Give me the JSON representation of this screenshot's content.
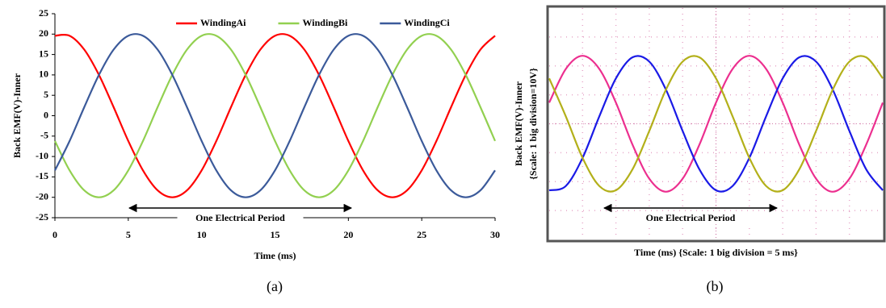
{
  "chart_data": [
    {
      "type": "line",
      "xlabel": "Time (ms)",
      "ylabel": "Back EMF(V)-Inner",
      "caption": "(a)",
      "annotation": "One Electrical Period",
      "x": [
        0,
        1,
        2,
        3,
        4,
        5,
        6,
        7,
        8,
        9,
        10,
        11,
        12,
        13,
        14,
        15,
        16,
        17,
        18,
        19,
        20,
        21,
        22,
        23,
        24,
        25,
        26,
        27,
        28,
        29,
        30
      ],
      "series": [
        {
          "name": "WindingAi",
          "color": "#ff0000",
          "values": [
            19.6,
            19.6,
            16.2,
            10,
            2.1,
            -6.2,
            -13.4,
            -18.3,
            -20,
            -18.3,
            -13.4,
            -6.2,
            2.1,
            10,
            16.2,
            19.6,
            19.6,
            16.2,
            10,
            2.1,
            -6.2,
            -13.4,
            -18.3,
            -20,
            -18.3,
            -13.4,
            -6.2,
            2.1,
            10,
            16.2,
            19.6
          ]
        },
        {
          "name": "WindingBi",
          "color": "#92d050",
          "values": [
            -6.2,
            -13.4,
            -18.3,
            -20,
            -18.3,
            -13.4,
            -6.2,
            2.1,
            10,
            16.2,
            19.6,
            19.6,
            16.2,
            10,
            2.1,
            -6.2,
            -13.4,
            -18.3,
            -20,
            -18.3,
            -13.4,
            -6.2,
            2.1,
            10,
            16.2,
            19.6,
            19.6,
            16.2,
            10,
            2.1,
            -6.2
          ]
        },
        {
          "name": "WindingCi",
          "color": "#3b5a9a",
          "values": [
            -13.4,
            -6.2,
            2.1,
            10,
            16.2,
            19.6,
            19.6,
            16.2,
            10,
            2.1,
            -6.2,
            -13.4,
            -18.3,
            -20,
            -18.3,
            -13.4,
            -6.2,
            2.1,
            10,
            16.2,
            19.6,
            19.6,
            16.2,
            10,
            2.1,
            -6.2,
            -13.4,
            -18.3,
            -20,
            -18.3,
            -13.4
          ]
        }
      ],
      "xlim": [
        0,
        30
      ],
      "xticks": [
        0,
        5,
        10,
        15,
        20,
        25,
        30
      ],
      "ylim": [
        -25,
        25
      ],
      "yticks": [
        -25,
        -20,
        -15,
        -10,
        -5,
        0,
        5,
        10,
        15,
        20,
        25
      ],
      "grid": false,
      "legend": "top"
    },
    {
      "type": "line",
      "xlabel": "Time (ms) {Scale: 1 big division = 5 ms}",
      "ylabel": [
        "Back EMF(V)-Inner",
        "{Scale: 1 big division=10V}"
      ],
      "caption": "(b)",
      "annotation": "One Electrical Period",
      "x": [
        0,
        2.5,
        5,
        7.5,
        10,
        12.5,
        15,
        17.5,
        20,
        22.5,
        25,
        27.5,
        30,
        32.5,
        35,
        37.5,
        40,
        42.5,
        45,
        47.5,
        50
      ],
      "series": [
        {
          "color": "#ec2f8f",
          "values": [
            7.3,
            19.0,
            23.5,
            19.0,
            7.3,
            -7.3,
            -19.0,
            -23.5,
            -19.0,
            -7.3,
            7.3,
            19.0,
            23.5,
            19.0,
            7.3,
            -7.3,
            -19.0,
            -23.5,
            -19.0,
            -7.3,
            7.3
          ]
        },
        {
          "color": "#1a1ae6",
          "values": [
            -23.0,
            -21.5,
            -11.8,
            2.5,
            15.7,
            23.0,
            21.5,
            11.8,
            -2.5,
            -15.7,
            -23.0,
            -21.5,
            -11.8,
            2.5,
            15.7,
            23.0,
            21.5,
            11.8,
            -2.5,
            -15.7,
            -23.0
          ]
        },
        {
          "color": "#b3b01a",
          "values": [
            15.7,
            2.5,
            -11.8,
            -21.5,
            -23.0,
            -15.7,
            -2.5,
            11.8,
            21.5,
            23.0,
            15.7,
            2.5,
            -11.8,
            -21.5,
            -23.0,
            -15.7,
            -2.5,
            11.8,
            21.5,
            23.0,
            15.7
          ]
        }
      ],
      "xlim": [
        0,
        50
      ],
      "ylim": [
        -40,
        40
      ],
      "grid": true
    }
  ]
}
